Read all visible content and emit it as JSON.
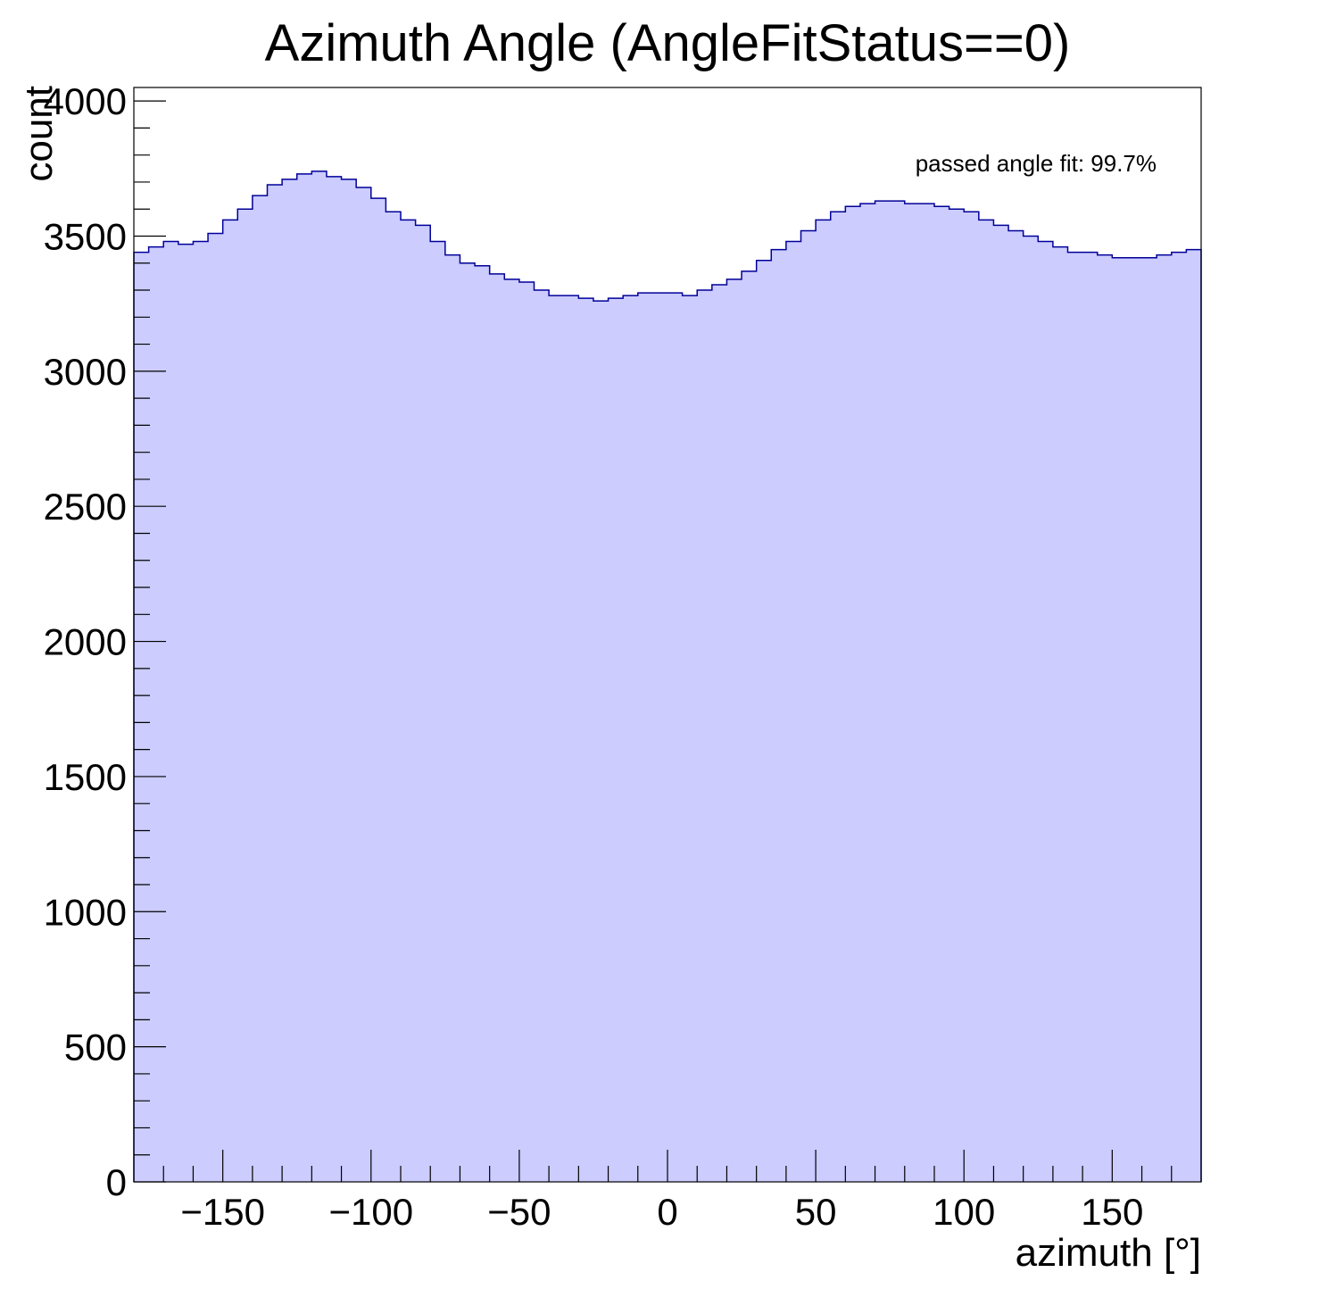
{
  "chart_data": {
    "type": "histogram",
    "title": "Azimuth Angle (AngleFitStatus==0)",
    "xlabel": "azimuth [°]",
    "ylabel": "count",
    "xlim": [
      -180,
      180
    ],
    "ylim": [
      0,
      4050
    ],
    "x_ticks": [
      -150,
      -100,
      -50,
      0,
      50,
      100,
      150
    ],
    "x_tick_labels": [
      "−150",
      "−100",
      "−50",
      "0",
      "50",
      "100",
      "150"
    ],
    "y_ticks": [
      0,
      500,
      1000,
      1500,
      2000,
      2500,
      3000,
      3500,
      4000
    ],
    "y_tick_labels": [
      "0",
      "500",
      "1000",
      "1500",
      "2000",
      "2500",
      "3000",
      "3500",
      "4000"
    ],
    "grid": false,
    "legend": "none",
    "annotation": "passed angle fit: 99.7%",
    "fill_color": "#ccccff",
    "line_color": "#000099",
    "bin_width": 5,
    "series": [
      {
        "x": [
          -177.5,
          -172.5,
          -167.5,
          -162.5,
          -157.5,
          -152.5,
          -147.5,
          -142.5,
          -137.5,
          -132.5,
          -127.5,
          -122.5,
          -117.5,
          -112.5,
          -107.5,
          -102.5,
          -97.5,
          -92.5,
          -87.5,
          -82.5,
          -77.5,
          -72.5,
          -67.5,
          -62.5,
          -57.5,
          -52.5,
          -47.5,
          -42.5,
          -37.5,
          -32.5,
          -27.5,
          -22.5,
          -17.5,
          -12.5,
          -7.5,
          -2.5,
          2.5,
          7.5,
          12.5,
          17.5,
          22.5,
          27.5,
          32.5,
          37.5,
          42.5,
          47.5,
          52.5,
          57.5,
          62.5,
          67.5,
          72.5,
          77.5,
          82.5,
          87.5,
          92.5,
          97.5,
          102.5,
          107.5,
          112.5,
          117.5,
          122.5,
          127.5,
          132.5,
          137.5,
          142.5,
          147.5,
          152.5,
          157.5,
          162.5,
          167.5,
          172.5,
          177.5
        ],
        "values": [
          3440,
          3460,
          3480,
          3470,
          3480,
          3510,
          3560,
          3600,
          3650,
          3690,
          3710,
          3730,
          3740,
          3720,
          3710,
          3680,
          3640,
          3590,
          3560,
          3540,
          3480,
          3430,
          3400,
          3390,
          3360,
          3340,
          3330,
          3300,
          3280,
          3280,
          3270,
          3260,
          3270,
          3280,
          3290,
          3290,
          3290,
          3280,
          3300,
          3320,
          3340,
          3370,
          3410,
          3450,
          3480,
          3520,
          3560,
          3590,
          3610,
          3620,
          3630,
          3630,
          3620,
          3620,
          3610,
          3600,
          3590,
          3560,
          3540,
          3520,
          3500,
          3480,
          3460,
          3440,
          3440,
          3430,
          3420,
          3420,
          3420,
          3430,
          3440,
          3450
        ]
      }
    ]
  }
}
